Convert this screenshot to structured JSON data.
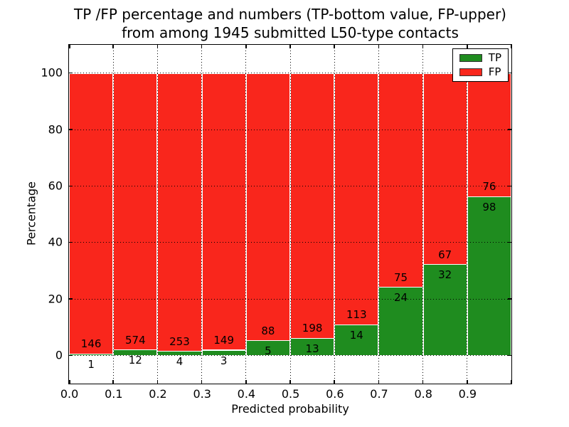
{
  "title": {
    "line1": "TP /FP percentage and numbers (TP-bottom value, FP-upper)",
    "line2": "from among 1945 submitted L50-type contacts"
  },
  "chart_data": {
    "type": "bar",
    "stacked": true,
    "normalized": "each bin scaled to 100%",
    "total_contacts": 1945,
    "bin_edges": [
      0.0,
      0.1,
      0.2,
      0.3,
      0.4,
      0.5,
      0.6,
      0.7,
      0.8,
      0.9,
      1.0
    ],
    "categories": [
      "0.0-0.1",
      "0.1-0.2",
      "0.2-0.3",
      "0.3-0.4",
      "0.4-0.5",
      "0.5-0.6",
      "0.6-0.7",
      "0.7-0.8",
      "0.8-0.9",
      "0.9-1.0"
    ],
    "series": [
      {
        "name": "TP",
        "color": "#1f8c1f",
        "counts": [
          1,
          12,
          4,
          3,
          5,
          13,
          14,
          24,
          32,
          98
        ]
      },
      {
        "name": "FP",
        "color": "#f9261c",
        "counts": [
          146,
          574,
          253,
          149,
          88,
          198,
          113,
          75,
          67,
          76
        ]
      }
    ],
    "tp_percent_of_bin": [
      0.68,
      2.05,
      1.56,
      1.97,
      5.38,
      6.16,
      11.02,
      24.24,
      32.32,
      56.32
    ],
    "title": "TP /FP percentage and numbers (TP-bottom value, FP-upper) from among 1945 submitted L50-type contacts",
    "xlabel": "Predicted probability",
    "ylabel": "Percentage",
    "xticks": [
      "0.0",
      "0.1",
      "0.2",
      "0.3",
      "0.4",
      "0.5",
      "0.6",
      "0.7",
      "0.8",
      "0.9"
    ],
    "yticks": [
      0,
      20,
      40,
      60,
      80,
      100
    ],
    "xlim": [
      0.0,
      1.0
    ],
    "ylim": [
      -10,
      110
    ],
    "grid": "dotted",
    "legend": {
      "entries": [
        "TP",
        "FP"
      ],
      "position": "upper right"
    }
  }
}
